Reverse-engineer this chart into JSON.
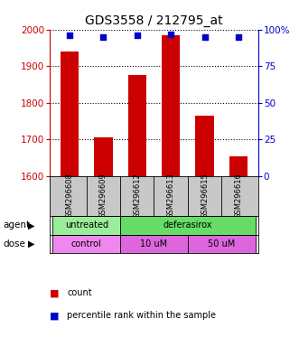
{
  "title": "GDS3558 / 212795_at",
  "samples": [
    "GSM296608",
    "GSM296609",
    "GSM296612",
    "GSM296613",
    "GSM296615",
    "GSM296616"
  ],
  "counts": [
    1940,
    1705,
    1875,
    1985,
    1765,
    1655
  ],
  "percentiles": [
    96,
    95,
    96,
    97,
    95,
    95
  ],
  "ylim_left": [
    1600,
    2000
  ],
  "ylim_right": [
    0,
    100
  ],
  "yticks_left": [
    1600,
    1700,
    1800,
    1900,
    2000
  ],
  "yticks_right": [
    0,
    25,
    50,
    75,
    100
  ],
  "bar_color": "#cc0000",
  "percentile_color": "#0000cc",
  "agent_groups": [
    {
      "label": "untreated",
      "start": 0,
      "end": 2,
      "color": "#99ee99"
    },
    {
      "label": "deferasirox",
      "start": 2,
      "end": 6,
      "color": "#66dd66"
    }
  ],
  "dose_groups": [
    {
      "label": "control",
      "start": 0,
      "end": 2,
      "color": "#ee88ee"
    },
    {
      "label": "10 uM",
      "start": 2,
      "end": 4,
      "color": "#dd66dd"
    },
    {
      "label": "50 uM",
      "start": 4,
      "end": 6,
      "color": "#dd66dd"
    }
  ],
  "agent_label": "agent",
  "dose_label": "dose",
  "legend_count_label": "count",
  "legend_percentile_label": "percentile rank within the sample",
  "background_color": "#ffffff",
  "tick_label_area_bg": "#c8c8c8"
}
